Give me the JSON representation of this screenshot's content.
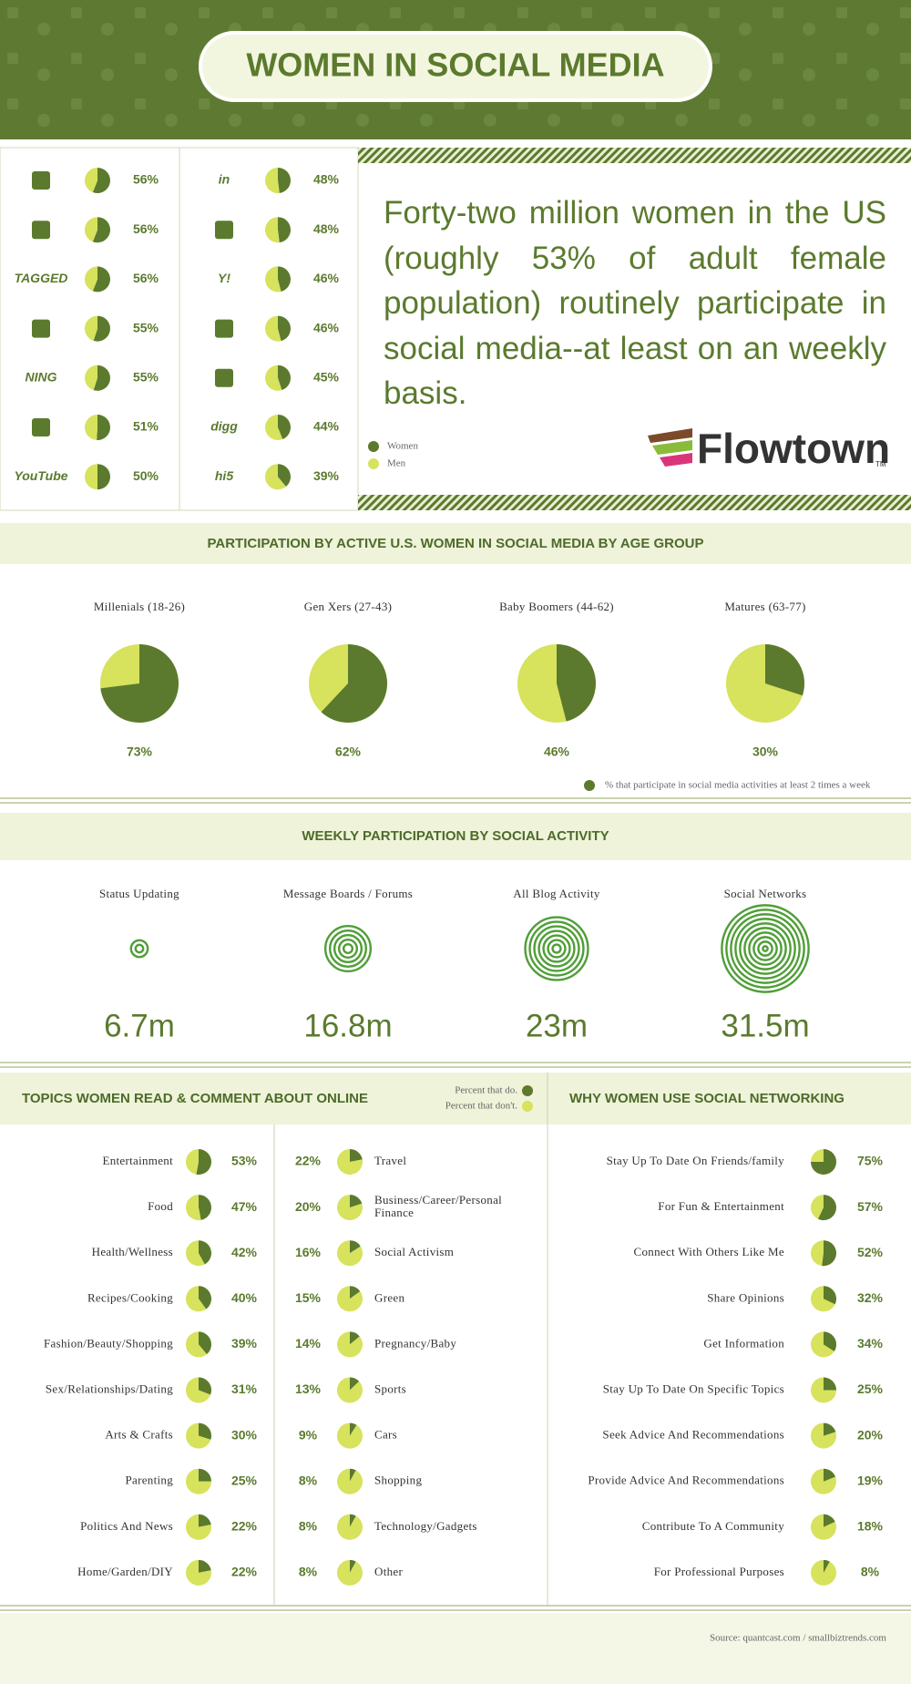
{
  "header": {
    "title": "WOMEN IN SOCIAL MEDIA"
  },
  "intro": "Forty-two million women in the US (roughly 53% of adult female population) routinely participate in social media--at least on an weekly basis.",
  "brand": "Flowtown",
  "brand_mark": "TM",
  "source": "Source: quantcast.com  /  smallbiztrends.com",
  "chart_data": [
    {
      "type": "pie",
      "categories": [
        null,
        null,
        "TAGGED",
        null,
        "NING",
        null,
        "YouTube",
        "in",
        null,
        "Y!",
        null,
        null,
        "digg",
        "hi5"
      ],
      "series": [
        {
          "name": "Women",
          "color": "#5b7a2e",
          "values": [
            56,
            56,
            56,
            55,
            55,
            51,
            50,
            48,
            48,
            46,
            46,
            45,
            44,
            39
          ],
          "value_labels": [
            "56%",
            "56%",
            "56%",
            "55%",
            "55%",
            "51%",
            "50%",
            "48%",
            "48%",
            "46%",
            "46%",
            "45%",
            "44%",
            "39%"
          ]
        },
        {
          "name": "Men",
          "color": "#d7e25d",
          "values": [
            44,
            44,
            44,
            45,
            45,
            49,
            50,
            52,
            52,
            54,
            54,
            55,
            56,
            61
          ]
        }
      ]
    },
    {
      "type": "pie",
      "title": "PARTICIPATION BY ACTIVE U.S. WOMEN IN SOCIAL MEDIA BY AGE GROUP",
      "categories": [
        "Millenials (18-26)",
        "Gen Xers (27-43)",
        "Baby Boomers (44-62)",
        "Matures (63-77)"
      ],
      "rest_color": "#d7e25d",
      "series": [
        {
          "name": "% that participate in social media activities at least 2 times a week",
          "color": "#5b7a2e",
          "values": [
            73,
            62,
            46,
            30
          ],
          "value_labels": [
            "73%",
            "62%",
            "46%",
            "30%"
          ]
        }
      ]
    },
    {
      "type": "rings",
      "title": "WEEKLY PARTICIPATION BY SOCIAL ACTIVITY",
      "categories": [
        "Status Updating",
        "Message Boards / Forums",
        "All Blog Activity",
        "Social Networks"
      ],
      "values": [
        6.7,
        16.8,
        23,
        31.5
      ],
      "value_labels": [
        "6.7m",
        "16.8m",
        "23m",
        "31.5m"
      ],
      "color": "#4f9e37"
    },
    {
      "type": "pie",
      "title": "TOPICS WOMEN READ & COMMENT ABOUT ONLINE",
      "categories": [
        "Entertainment",
        "Food",
        "Health/Wellness",
        "Recipes/Cooking",
        "Fashion/Beauty/Shopping",
        "Sex/Relationships/Dating",
        "Arts & Crafts",
        "Parenting",
        "Politics And News",
        "Home/Garden/DIY",
        "Travel",
        "Business/Career/Personal Finance",
        "Social Activism",
        "Green",
        "Pregnancy/Baby",
        "Sports",
        "Cars",
        "Shopping",
        "Technology/Gadgets",
        "Other"
      ],
      "series": [
        {
          "name": "Percent that do.",
          "color": "#5b7a2e",
          "values": [
            53,
            47,
            42,
            40,
            39,
            31,
            30,
            25,
            22,
            22,
            22,
            20,
            16,
            15,
            14,
            13,
            9,
            8,
            8,
            8
          ],
          "value_labels": [
            "53%",
            "47%",
            "42%",
            "40%",
            "39%",
            "31%",
            "30%",
            "25%",
            "22%",
            "22%",
            "22%",
            "20%",
            "16%",
            "15%",
            "14%",
            "13%",
            "9%",
            "8%",
            "8%",
            "8%"
          ]
        },
        {
          "name": "Percent that don't.",
          "color": "#d7e25d",
          "values": [
            47,
            53,
            58,
            60,
            61,
            69,
            70,
            75,
            78,
            78,
            78,
            80,
            84,
            85,
            86,
            87,
            91,
            92,
            92,
            92
          ]
        }
      ]
    },
    {
      "type": "pie",
      "title": "WHY WOMEN USE SOCIAL NETWORKING",
      "categories": [
        "Stay Up To Date On Friends/family",
        "For Fun & Entertainment",
        "Connect With Others Like Me",
        "Share Opinions",
        "Get Information",
        "Stay Up To Date On Specific Topics",
        "Seek Advice And Recommendations",
        "Provide Advice And Recommendations",
        "Contribute To A Community",
        "For Professional Purposes"
      ],
      "values": [
        75,
        57,
        52,
        32,
        34,
        25,
        20,
        19,
        18,
        8
      ],
      "value_labels": [
        "75%",
        "57%",
        "52%",
        "32%",
        "34%",
        "25%",
        "20%",
        "19%",
        "18%",
        "8%"
      ],
      "color": "#5b7a2e",
      "rest_color": "#d7e25d"
    }
  ]
}
